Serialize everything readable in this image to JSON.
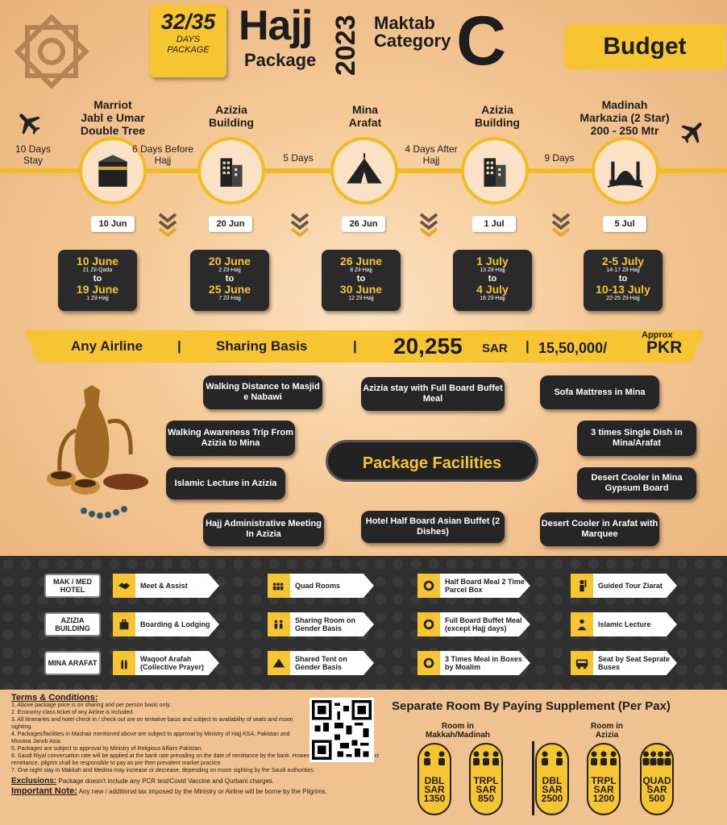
{
  "header": {
    "days_num": "32/35",
    "days_label_1": "DAYS",
    "days_label_2": "PACKAGE",
    "hajj": "Hajj",
    "package": "Package",
    "year": "2023",
    "maktab_1": "Maktab",
    "maktab_2": "Category",
    "category": "C",
    "tier": "Budget"
  },
  "colors": {
    "accent": "#f7c531",
    "dark": "#262626",
    "background": "#f0c28f"
  },
  "timeline": {
    "stay_start": "10 Days Stay",
    "stops": [
      {
        "name_lines": [
          "Marriot",
          "Jabl e Umar",
          "Double Tree"
        ],
        "icon": "kaaba-icon",
        "date": "10 Jun",
        "from": "10 June",
        "from_hijri": "21 Zil-Qada",
        "to_word": "to",
        "to": "19 June",
        "to_hijri": "1 Zil-Hajj"
      },
      {
        "name_lines": [
          "Azizia",
          "Building"
        ],
        "icon": "building-icon",
        "date": "20 Jun",
        "from": "20 June",
        "from_hijri": "2 Zil-Hajj",
        "to_word": "to",
        "to": "25 June",
        "to_hijri": "7 Zil-Hajj"
      },
      {
        "name_lines": [
          "Mina",
          "Arafat"
        ],
        "icon": "tent-icon",
        "date": "26 Jun",
        "from": "26 June",
        "from_hijri": "8 Zil-Hajj",
        "to_word": "to",
        "to": "30 June",
        "to_hijri": "12 Zil-Hajj"
      },
      {
        "name_lines": [
          "Azizia",
          "Building"
        ],
        "icon": "building-icon",
        "date": "1 Jul",
        "from": "1 July",
        "from_hijri": "13 Zil-Hajj",
        "to_word": "to",
        "to": "4 July",
        "to_hijri": "16 Zil-Hajj"
      },
      {
        "name_lines": [
          "Madinah",
          "Markazia (2 Star)",
          "200 - 250 Mtr"
        ],
        "icon": "mosque-icon",
        "date": "5 Jul",
        "from": "2-5 July",
        "from_hijri": "14-17 Zil-Hajj",
        "to_word": "to",
        "to": "10-13 July",
        "to_hijri": "22-25 Zil-Hajj"
      }
    ],
    "gaps": [
      "6 Days Before Hajj",
      "5 Days",
      "4 Days After Hajj",
      "9 Days"
    ]
  },
  "price_band": {
    "airline": "Any Airline",
    "sep": "|",
    "basis": "Sharing Basis",
    "sar_amount": "20,255",
    "sar_unit": "SAR",
    "approx": "Approx",
    "pkr_amount": "15,50,000/",
    "pkr_unit": "PKR"
  },
  "facilities": {
    "title": "Package Facilities",
    "items": [
      "Walking Distance to Masjid e Nabawi",
      "Azizia stay with Full Board Buffet Meal",
      "Sofa Mattress in Mina",
      "Walking Awareness Trip From Azizia to Mina",
      "3 times Single Dish in Mina/Arafat",
      "Islamic Lecture in Azizia",
      "Desert Cooler in Mina Gypsum Board",
      "Hajj Administrative Meeting In Azizia",
      "Hotel Half Board Asian Buffet (2 Dishes)",
      "Desert Cooler in Arafat with Marquee"
    ]
  },
  "services": {
    "rows": [
      {
        "label": "MAK / MED HOTEL",
        "items": [
          {
            "icon": "handshake-icon",
            "text": "Meet & Assist"
          },
          {
            "icon": "people-icon",
            "text": "Quad Rooms"
          },
          {
            "icon": "plate-icon",
            "text": "Half Board Meal 2 Time Parcel Box"
          },
          {
            "icon": "guide-icon",
            "text": "Guided Tour Ziarat"
          }
        ]
      },
      {
        "label": "AZIZIA BUILDING",
        "items": [
          {
            "icon": "luggage-icon",
            "text": "Boarding & Lodging"
          },
          {
            "icon": "people-icon",
            "text": "Sharing Room on Gender Basis"
          },
          {
            "icon": "plate-icon",
            "text": "Full Board Buffet Meal (except Hajj days)"
          },
          {
            "icon": "lecture-icon",
            "text": "Islamic Lecture"
          }
        ]
      },
      {
        "label": "MINA ARAFAT",
        "items": [
          {
            "icon": "prayer-icon",
            "text": "Waqoof Arafah (Collective Prayer)"
          },
          {
            "icon": "tent-icon",
            "text": "Shared Tent on Gender Basis"
          },
          {
            "icon": "plate-icon",
            "text": "3 Times Meal in Boxes by Moalim"
          },
          {
            "icon": "bus-icon",
            "text": "Seat by Seat Seprate Buses"
          }
        ]
      }
    ]
  },
  "terms": {
    "title": "Terms & Conditions:",
    "items": [
      "1, Above package price is on sharing and per person basis only.",
      "2. Economy class ticket of any Airline is included.",
      "3. All itineraries and hotel check in / check out are on tentative basis and subject to availability of seats and moon sighting.",
      "4. Packages/facilities in Mashair mentioned above are subject to approval by Ministry of Hajj KSA, Pakistan and Mosasa Janob Asia.",
      "5. Packages are subject to approval by Ministry of Religious Affairs Pakistan.",
      "6. Saudi Riyal conversation rate will be applied at the bank rate prevailing on the date of remittance by the bank. However, if banks refused to effect remittance, pilgrim shall be responsible to pay as per then prevalent market practice.",
      "7. One night stay in Makkah and Medina may increase or decrease, depending on moon sighting by the Saudi authorities."
    ],
    "exclusions_label": "Exclusions:",
    "exclusions": "Package doesn't include any PCR test/Covid Vaccine and Qurbani charges.",
    "note_label": "Important Note:",
    "note": "Any new / additional tax imposed by the Ministry or Airline will be borne by the Pilgrims."
  },
  "supplement": {
    "title": "Separate Room By Paying Supplement (Per Pax)",
    "group1": "Room in Makkah/Madinah",
    "group2": "Room in Azizia",
    "rooms": [
      {
        "type": "DBL",
        "cur": "SAR",
        "price": "1350",
        "people": 2
      },
      {
        "type": "TRPL",
        "cur": "SAR",
        "price": "850",
        "people": 3
      },
      {
        "type": "DBL",
        "cur": "SAR",
        "price": "2500",
        "people": 2
      },
      {
        "type": "TRPL",
        "cur": "SAR",
        "price": "1200",
        "people": 3
      },
      {
        "type": "QUAD",
        "cur": "SAR",
        "price": "500",
        "people": 4
      }
    ]
  }
}
